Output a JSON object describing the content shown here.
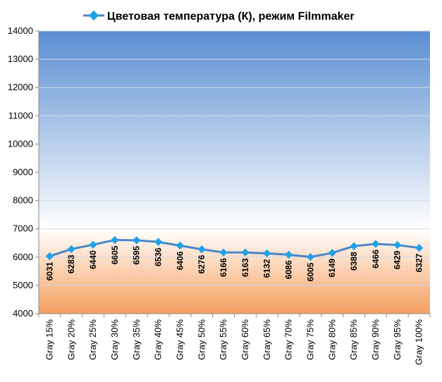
{
  "chart_data": {
    "type": "line",
    "title": "",
    "xlabel": "",
    "ylabel": "",
    "ylim": [
      4000,
      14000
    ],
    "yticks": [
      4000,
      5000,
      6000,
      7000,
      8000,
      9000,
      10000,
      11000,
      12000,
      13000,
      14000
    ],
    "grid": "horizontal",
    "legend_position": "top",
    "categories": [
      "Gray 15%",
      "Gray 20%",
      "Gray 25%",
      "Gray 30%",
      "Gray 35%",
      "Gray 40%",
      "Gray 45%",
      "Gray 50%",
      "Gray 55%",
      "Gray 60%",
      "Gray 65%",
      "Gray 70%",
      "Gray 75%",
      "Gray 80%",
      "Gray 85%",
      "Gray 90%",
      "Gray 95%",
      "Gray 100%"
    ],
    "series": [
      {
        "name": "Цветовая температура (К), режим Filmmaker",
        "color": "#4a86c8",
        "marker_color": "#1fa3e8",
        "values": [
          6031,
          6283,
          6440,
          6605,
          6595,
          6536,
          6406,
          6276,
          6166,
          6163,
          6132,
          6086,
          6005,
          6149,
          6388,
          6466,
          6429,
          6327
        ]
      }
    ],
    "data_labels": [
      "6031",
      "6283",
      "6440",
      "6605",
      "6595",
      "6536",
      "6406",
      "6276",
      "6166",
      "6163",
      "6132",
      "6086",
      "6005",
      "6149",
      "6388",
      "6466",
      "6429",
      "6327"
    ],
    "background": {
      "cool_band": {
        "from": 7000,
        "to": 14000,
        "top_color": "#5a8ed2",
        "bottom_color": "#ffffff"
      },
      "warm_band": {
        "from": 4000,
        "to": 7000,
        "top_color": "#ffffff",
        "bottom_color": "#f5a060"
      }
    }
  }
}
